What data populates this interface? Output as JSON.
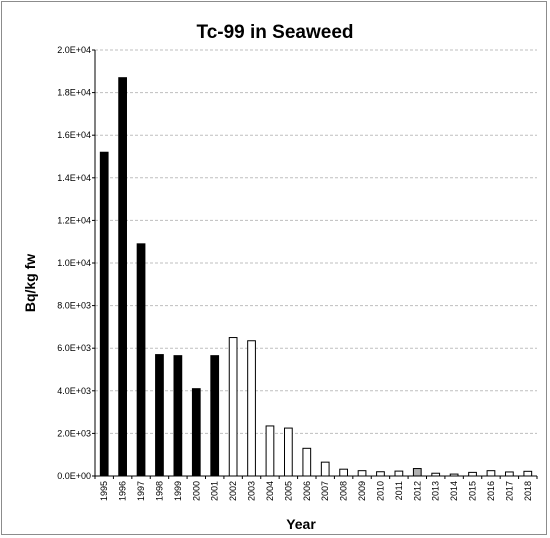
{
  "chart_data": {
    "type": "bar",
    "title": "Tc-99 in Seaweed",
    "xlabel": "Year",
    "ylabel": "Bq/kg fw",
    "ylim": [
      0,
      20000
    ],
    "y_ticks": [
      "0.0E+00",
      "2.0E+03",
      "4.0E+03",
      "6.0E+03",
      "8.0E+03",
      "1.0E+04",
      "1.2E+04",
      "1.4E+04",
      "1.6E+04",
      "1.8E+04",
      "2.0E+04"
    ],
    "grid": true,
    "categories": [
      "1995",
      "1996",
      "1997",
      "1998",
      "1999",
      "2000",
      "2001",
      "2002",
      "2003",
      "2004",
      "2005",
      "2006",
      "2007",
      "2008",
      "2009",
      "2010",
      "2011",
      "2012",
      "2013",
      "2014",
      "2015",
      "2016",
      "2017",
      "2018"
    ],
    "values": [
      15200,
      18700,
      10900,
      5700,
      5650,
      4100,
      5650,
      6500,
      6350,
      2350,
      2250,
      1300,
      650,
      320,
      250,
      200,
      230,
      350,
      130,
      90,
      170,
      250,
      190,
      220
    ],
    "bar_fills": [
      "#000000",
      "#000000",
      "#000000",
      "#000000",
      "#000000",
      "#000000",
      "#000000",
      "#ffffff",
      "#ffffff",
      "#ffffff",
      "#ffffff",
      "#ffffff",
      "#ffffff",
      "#ffffff",
      "#ffffff",
      "#ffffff",
      "#ffffff",
      "#b0b0b0",
      "#ffffff",
      "#ffffff",
      "#ffffff",
      "#ffffff",
      "#ffffff",
      "#ffffff"
    ],
    "colors": {
      "gridline": "#bfbfbf",
      "axis": "#000000",
      "bar_edge": "#000000"
    }
  }
}
